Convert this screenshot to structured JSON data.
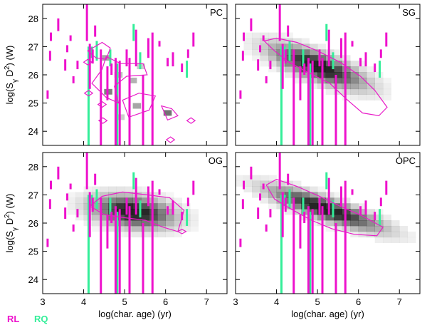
{
  "colors": {
    "rl": "#ee11cc",
    "rq": "#33ee99",
    "contour": "#e81cc8",
    "frame": "#000000"
  },
  "legend": {
    "rl_label": "RL",
    "rq_label": "RQ"
  },
  "chart_data": {
    "type": "scatter",
    "shared_axes": {
      "xlim": [
        3.0,
        7.5
      ],
      "ylim": [
        23.5,
        28.5
      ],
      "xticks": [
        3,
        4,
        5,
        6,
        7
      ],
      "yticks": [
        24,
        25,
        26,
        27,
        28
      ],
      "xlabel": "log(char. age) (yr)",
      "ylabel": {
        "prefix": "log(S",
        "sub": "γ",
        "mid": " D",
        "sup": "2",
        "suffix": ") (W)"
      }
    },
    "observed": {
      "rl_bars": [
        {
          "x": 3.12,
          "y0": 25.15,
          "y1": 25.45
        },
        {
          "x": 3.18,
          "y0": 26.5,
          "y1": 26.85
        },
        {
          "x": 3.2,
          "y0": 27.2,
          "y1": 27.5
        },
        {
          "x": 3.38,
          "y0": 27.55,
          "y1": 28.0
        },
        {
          "x": 3.55,
          "y0": 26.15,
          "y1": 26.55
        },
        {
          "x": 3.6,
          "y0": 26.8,
          "y1": 27.05
        },
        {
          "x": 3.68,
          "y0": 27.2,
          "y1": 27.4
        },
        {
          "x": 3.75,
          "y0": 25.7,
          "y1": 25.95
        },
        {
          "x": 3.85,
          "y0": 26.2,
          "y1": 26.5
        },
        {
          "x": 4.08,
          "y0": 27.2,
          "y1": 28.5
        },
        {
          "x": 4.15,
          "y0": 25.5,
          "y1": 27.1
        },
        {
          "x": 4.22,
          "y0": 26.4,
          "y1": 26.9
        },
        {
          "x": 4.28,
          "y0": 27.35,
          "y1": 27.75
        },
        {
          "x": 4.42,
          "y0": 23.5,
          "y1": 26.9
        },
        {
          "x": 4.58,
          "y0": 25.1,
          "y1": 26.3
        },
        {
          "x": 4.68,
          "y0": 26.0,
          "y1": 26.4
        },
        {
          "x": 4.78,
          "y0": 23.5,
          "y1": 26.6
        },
        {
          "x": 4.88,
          "y0": 23.5,
          "y1": 26.5
        },
        {
          "x": 5.05,
          "y0": 26.3,
          "y1": 26.9
        },
        {
          "x": 5.12,
          "y0": 23.5,
          "y1": 26.6
        },
        {
          "x": 5.28,
          "y0": 26.3,
          "y1": 27.6
        },
        {
          "x": 5.45,
          "y0": 23.5,
          "y1": 26.0
        },
        {
          "x": 5.58,
          "y0": 26.6,
          "y1": 27.3
        },
        {
          "x": 5.68,
          "y0": 23.5,
          "y1": 27.5
        },
        {
          "x": 5.85,
          "y0": 27.0,
          "y1": 27.2
        },
        {
          "x": 6.05,
          "y0": 26.3,
          "y1": 26.6
        },
        {
          "x": 6.18,
          "y0": 26.3,
          "y1": 26.8
        },
        {
          "x": 6.4,
          "y0": 26.1,
          "y1": 26.4
        },
        {
          "x": 6.55,
          "y0": 26.6,
          "y1": 26.9
        },
        {
          "x": 6.68,
          "y0": 27.0,
          "y1": 27.5
        }
      ],
      "rq_bars": [
        {
          "x": 4.12,
          "y0": 23.5,
          "y1": 27.0
        },
        {
          "x": 4.2,
          "y0": 26.6,
          "y1": 27.0
        },
        {
          "x": 4.32,
          "y0": 26.5,
          "y1": 27.2
        },
        {
          "x": 4.65,
          "y0": 26.3,
          "y1": 26.9
        },
        {
          "x": 4.82,
          "y0": 23.5,
          "y1": 26.4
        },
        {
          "x": 5.22,
          "y0": 27.2,
          "y1": 27.8
        },
        {
          "x": 5.38,
          "y0": 26.2,
          "y1": 26.8
        },
        {
          "x": 6.52,
          "y0": 25.9,
          "y1": 26.5
        }
      ]
    },
    "panels": [
      {
        "title": "PC",
        "grid": [],
        "contours": [
          [
            [
              4.1,
              26.85
            ],
            [
              4.45,
              27.15
            ],
            [
              4.65,
              26.95
            ],
            [
              4.55,
              26.55
            ],
            [
              4.3,
              26.6
            ],
            [
              4.1,
              26.85
            ]
          ],
          [
            [
              4.45,
              26.2
            ],
            [
              4.2,
              25.7
            ],
            [
              4.55,
              25.2
            ],
            [
              4.85,
              25.0
            ],
            [
              4.75,
              25.6
            ],
            [
              5.05,
              25.95
            ],
            [
              5.55,
              26.0
            ],
            [
              5.45,
              26.4
            ],
            [
              4.9,
              26.4
            ],
            [
              4.55,
              26.65
            ],
            [
              4.45,
              26.2
            ]
          ],
          [
            [
              4.95,
              25.1
            ],
            [
              5.35,
              25.35
            ],
            [
              5.75,
              25.25
            ],
            [
              5.6,
              24.75
            ],
            [
              5.1,
              24.5
            ],
            [
              4.95,
              25.1
            ]
          ],
          [
            [
              5.9,
              24.9
            ],
            [
              6.15,
              24.8
            ],
            [
              6.3,
              24.55
            ],
            [
              6.05,
              24.4
            ],
            [
              5.9,
              24.9
            ]
          ],
          [
            [
              4.0,
              26.45
            ],
            [
              4.1,
              26.55
            ],
            [
              4.2,
              26.45
            ],
            [
              4.1,
              26.35
            ],
            [
              4.0,
              26.45
            ]
          ],
          [
            [
              4.02,
              25.35
            ],
            [
              4.12,
              25.45
            ],
            [
              4.22,
              25.35
            ],
            [
              4.12,
              25.25
            ],
            [
              4.02,
              25.35
            ]
          ],
          [
            [
              4.35,
              24.95
            ],
            [
              4.45,
              25.05
            ],
            [
              4.55,
              24.95
            ],
            [
              4.45,
              24.85
            ],
            [
              4.35,
              24.95
            ]
          ],
          [
            [
              4.37,
              24.38
            ],
            [
              4.47,
              24.48
            ],
            [
              4.57,
              24.38
            ],
            [
              4.47,
              24.28
            ],
            [
              4.37,
              24.38
            ]
          ],
          [
            [
              6.52,
              24.38
            ],
            [
              6.62,
              24.48
            ],
            [
              6.72,
              24.38
            ],
            [
              6.62,
              24.28
            ],
            [
              6.52,
              24.38
            ]
          ],
          [
            [
              6.02,
              23.7
            ],
            [
              6.12,
              23.8
            ],
            [
              6.22,
              23.7
            ],
            [
              6.12,
              23.6
            ],
            [
              6.02,
              23.7
            ]
          ]
        ]
      },
      {
        "title": "SG",
        "grid": [],
        "contours": [
          [
            [
              3.7,
              27.2
            ],
            [
              3.95,
              26.85
            ],
            [
              4.3,
              26.45
            ],
            [
              4.75,
              26.1
            ],
            [
              5.3,
              25.7
            ],
            [
              5.7,
              25.15
            ],
            [
              6.1,
              24.65
            ],
            [
              6.5,
              24.55
            ],
            [
              6.7,
              24.85
            ],
            [
              6.4,
              25.45
            ],
            [
              6.05,
              25.95
            ],
            [
              5.55,
              26.45
            ],
            [
              5.0,
              26.85
            ],
            [
              4.5,
              27.15
            ],
            [
              4.0,
              27.3
            ],
            [
              3.7,
              27.2
            ]
          ]
        ]
      },
      {
        "title": "OG",
        "grid": [],
        "contours": [
          [
            [
              4.15,
              26.6
            ],
            [
              4.45,
              26.95
            ],
            [
              4.95,
              27.1
            ],
            [
              5.55,
              27.0
            ],
            [
              6.1,
              26.9
            ],
            [
              6.45,
              26.45
            ],
            [
              6.3,
              25.7
            ],
            [
              5.95,
              25.85
            ],
            [
              5.5,
              26.1
            ],
            [
              4.95,
              26.2
            ],
            [
              4.5,
              26.3
            ],
            [
              4.15,
              26.6
            ]
          ],
          [
            [
              6.3,
              25.7
            ],
            [
              6.4,
              25.78
            ],
            [
              6.5,
              25.7
            ],
            [
              6.4,
              25.62
            ],
            [
              6.3,
              25.7
            ]
          ]
        ]
      },
      {
        "title": "OPC",
        "grid": [],
        "contours": [
          [
            [
              3.75,
              27.35
            ],
            [
              4.0,
              27.55
            ],
            [
              4.5,
              27.3
            ],
            [
              5.05,
              26.95
            ],
            [
              5.55,
              26.6
            ],
            [
              6.1,
              26.25
            ],
            [
              6.6,
              25.85
            ],
            [
              6.45,
              25.55
            ],
            [
              5.9,
              25.6
            ],
            [
              5.35,
              25.8
            ],
            [
              4.85,
              26.1
            ],
            [
              4.35,
              26.5
            ],
            [
              3.95,
              26.85
            ],
            [
              3.75,
              27.35
            ]
          ]
        ]
      }
    ]
  }
}
